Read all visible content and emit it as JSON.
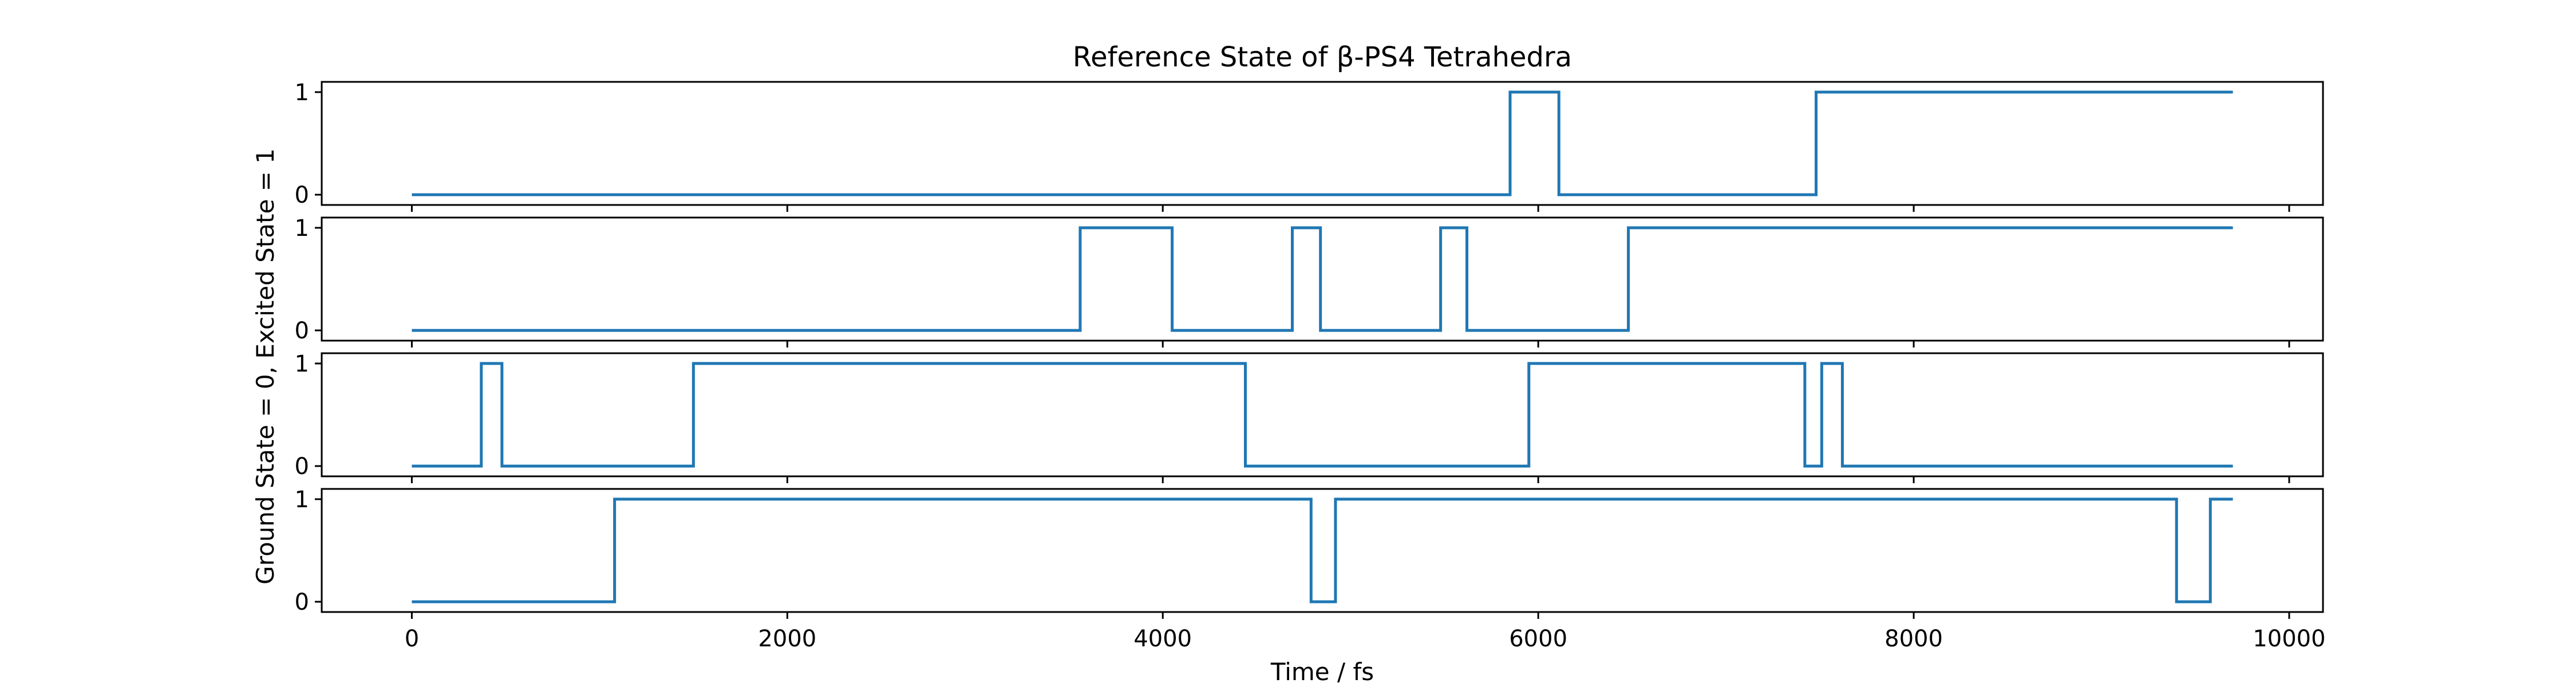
{
  "chart_data": {
    "type": "line",
    "title": "Reference State of β-PS4 Tetrahedra",
    "xlabel": "Time / fs",
    "ylabel": "Ground State = 0, Excited State = 1",
    "xlim": [
      -480,
      10180
    ],
    "ylim": [
      -0.1,
      1.1
    ],
    "x_ticks": [
      {
        "value": 0,
        "label": "0"
      },
      {
        "value": 2000,
        "label": "2000"
      },
      {
        "value": 4000,
        "label": "4000"
      },
      {
        "value": 6000,
        "label": "6000"
      },
      {
        "value": 8000,
        "label": "8000"
      },
      {
        "value": 10000,
        "label": "10000"
      }
    ],
    "y_ticks": [
      {
        "value": 0,
        "label": "0"
      },
      {
        "value": 1,
        "label": "1"
      }
    ],
    "line_color": "#1f77b4",
    "x_end": 9700,
    "panels": [
      {
        "initial_state": 0,
        "transitions": [
          {
            "x": 5850,
            "state": 1
          },
          {
            "x": 6110,
            "state": 0
          },
          {
            "x": 7480,
            "state": 1
          }
        ]
      },
      {
        "initial_state": 0,
        "transitions": [
          {
            "x": 3560,
            "state": 1
          },
          {
            "x": 4050,
            "state": 0
          },
          {
            "x": 4690,
            "state": 1
          },
          {
            "x": 4840,
            "state": 0
          },
          {
            "x": 5480,
            "state": 1
          },
          {
            "x": 5620,
            "state": 0
          },
          {
            "x": 6480,
            "state": 1
          }
        ]
      },
      {
        "initial_state": 0,
        "transitions": [
          {
            "x": 370,
            "state": 1
          },
          {
            "x": 480,
            "state": 0
          },
          {
            "x": 1500,
            "state": 1
          },
          {
            "x": 4440,
            "state": 0
          },
          {
            "x": 5950,
            "state": 1
          },
          {
            "x": 7420,
            "state": 0
          },
          {
            "x": 7510,
            "state": 1
          },
          {
            "x": 7620,
            "state": 0
          }
        ]
      },
      {
        "initial_state": 0,
        "transitions": [
          {
            "x": 1080,
            "state": 1
          },
          {
            "x": 4790,
            "state": 0
          },
          {
            "x": 4920,
            "state": 1
          },
          {
            "x": 9400,
            "state": 0
          },
          {
            "x": 9580,
            "state": 1
          }
        ]
      }
    ]
  }
}
